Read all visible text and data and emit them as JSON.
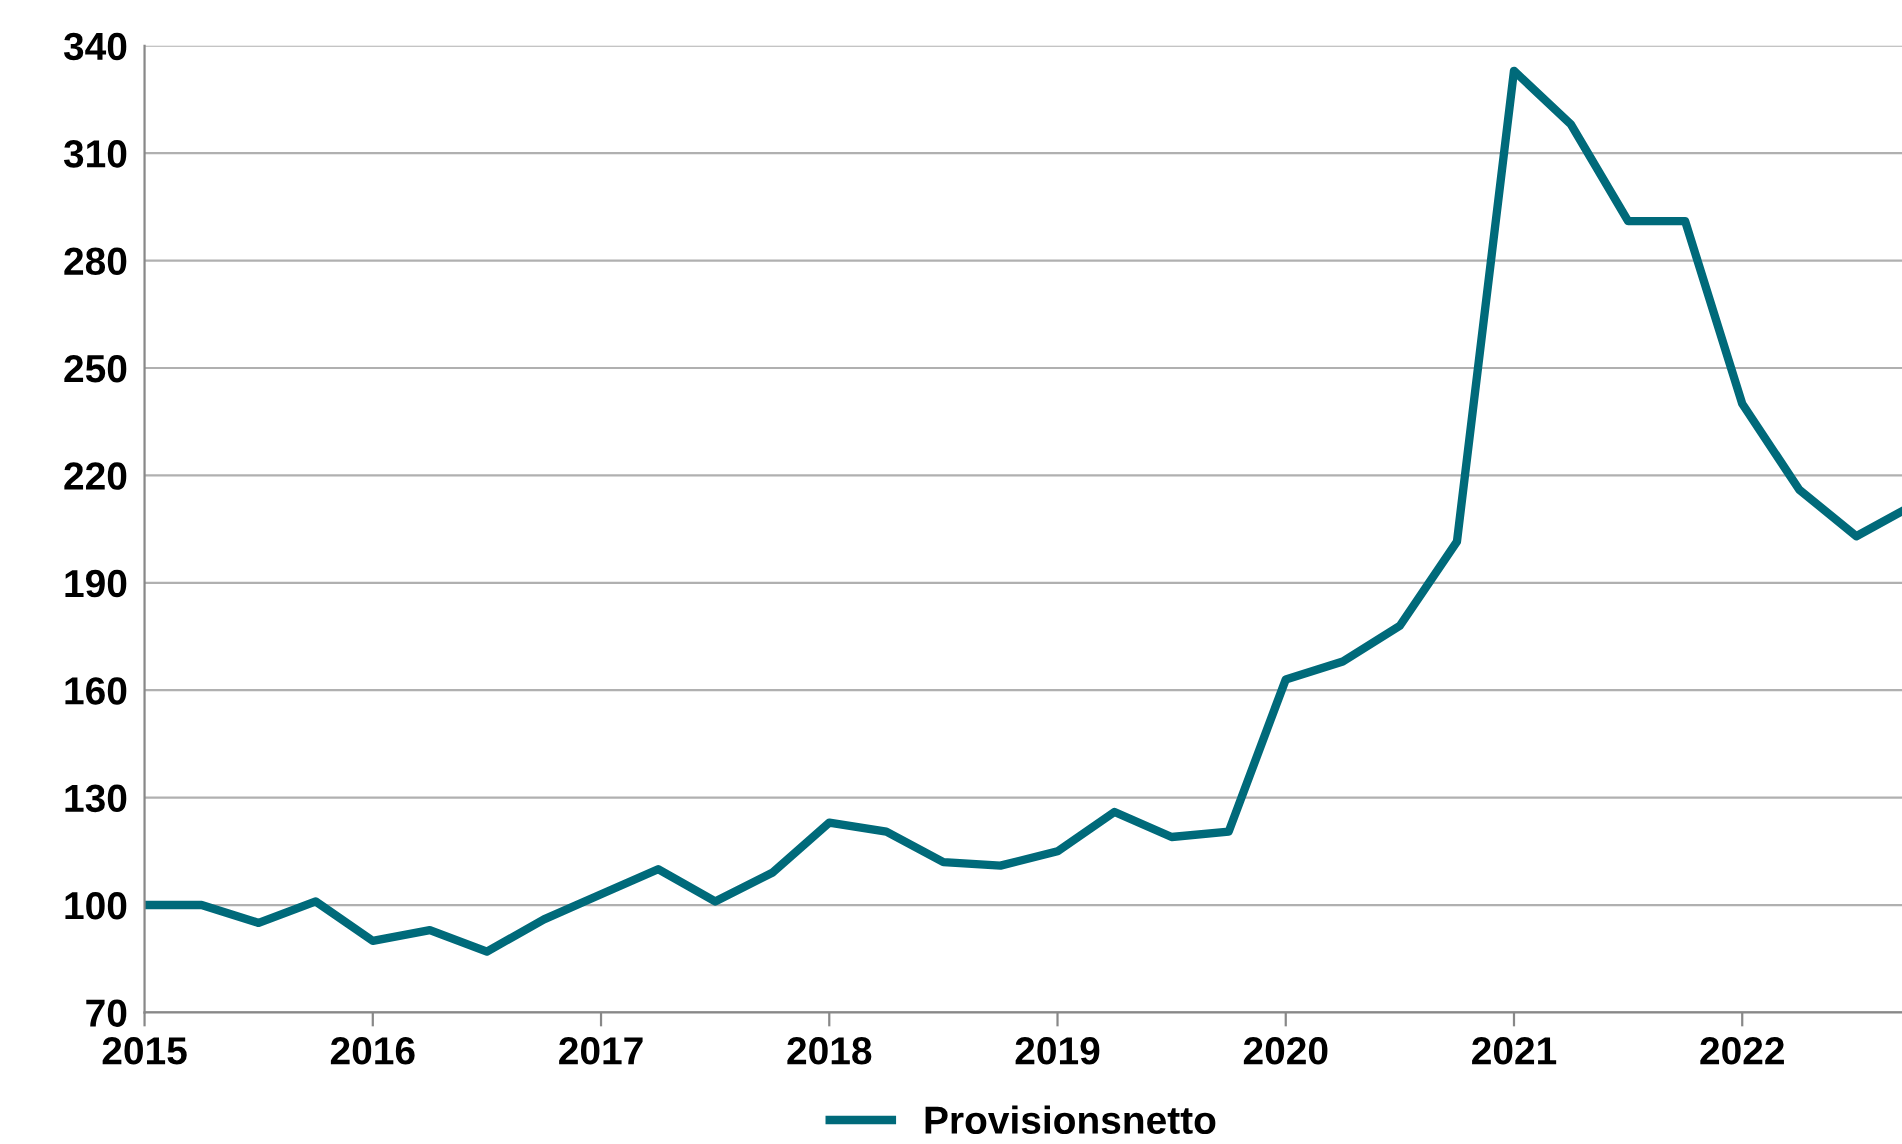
{
  "chart_data": {
    "type": "line",
    "x": [
      2015,
      2015.25,
      2015.5,
      2015.75,
      2016,
      2016.25,
      2016.5,
      2016.75,
      2017,
      2017.25,
      2017.5,
      2017.75,
      2018,
      2018.25,
      2018.5,
      2018.75,
      2019,
      2019.25,
      2019.5,
      2019.75,
      2020,
      2020.25,
      2020.5,
      2020.75,
      2021,
      2021.25,
      2021.5,
      2021.75,
      2022,
      2022.25,
      2022.5,
      2022.7
    ],
    "series": [
      {
        "name": "Provisionsnetto",
        "color": "#006a7a",
        "values": [
          100,
          100,
          95,
          101,
          90,
          93,
          87,
          96,
          103,
          110,
          101,
          109,
          123,
          120.5,
          112,
          111,
          115,
          126,
          119,
          120.5,
          163,
          168,
          178,
          201.5,
          333,
          318,
          291,
          291,
          240,
          216,
          203,
          210
        ]
      }
    ],
    "xlim": [
      2015,
      2022.7
    ],
    "xticks": [
      2015,
      2016,
      2017,
      2018,
      2019,
      2020,
      2021,
      2022
    ],
    "ylim": [
      70,
      340
    ],
    "yticks": [
      70,
      100,
      130,
      160,
      190,
      220,
      250,
      280,
      310,
      340
    ],
    "grid": "y",
    "legend": "bottom",
    "marker": "none",
    "line_style": "solid"
  }
}
